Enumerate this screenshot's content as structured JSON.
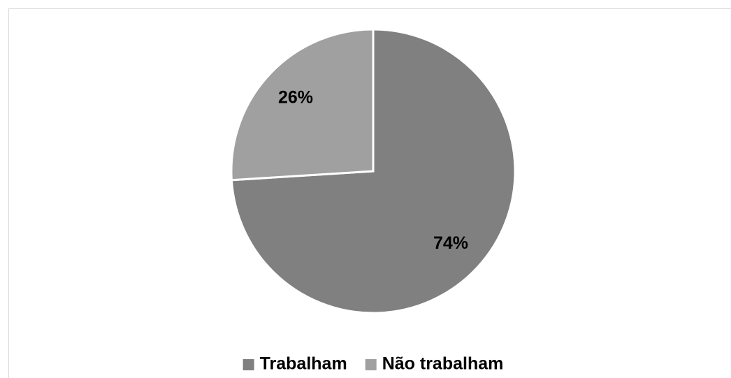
{
  "chart_data": {
    "type": "pie",
    "categories": [
      "Trabalham",
      "Não trabalham"
    ],
    "values": [
      74,
      26
    ],
    "value_labels": [
      "74%",
      "26%"
    ],
    "colors": [
      "#808080",
      "#a0a0a0"
    ],
    "legend": "bottom"
  }
}
